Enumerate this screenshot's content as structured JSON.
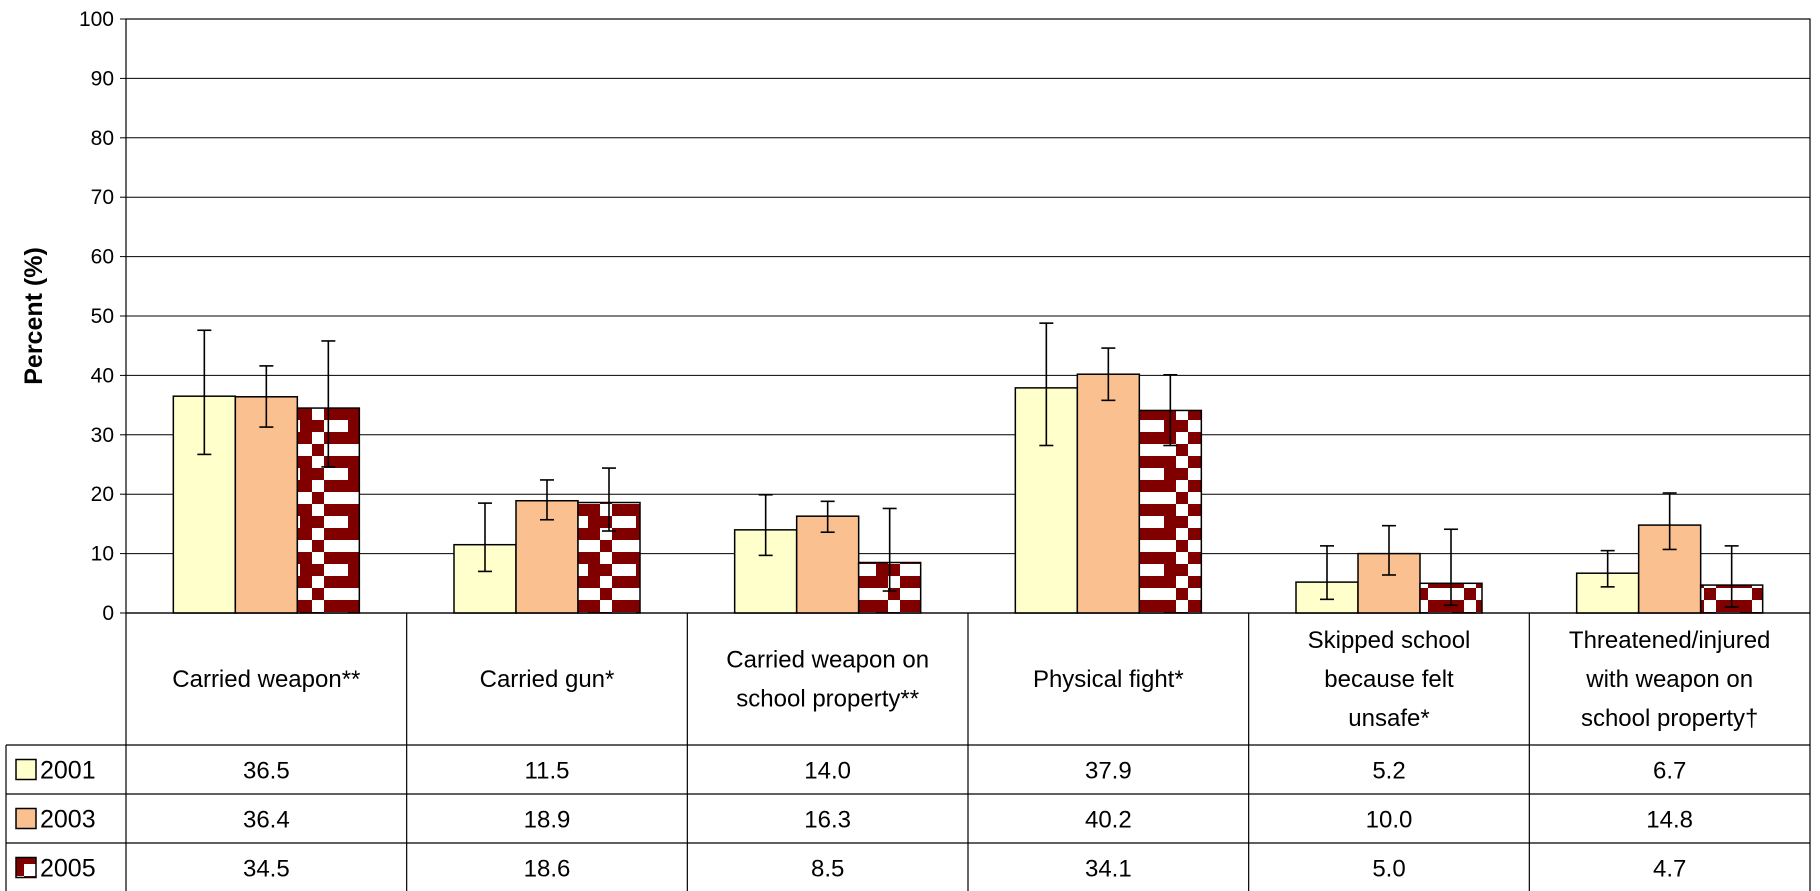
{
  "chart_data": {
    "type": "bar",
    "title": "",
    "ylabel": "Percent (%)",
    "ylim": [
      0,
      100
    ],
    "yticks": [
      0,
      10,
      20,
      30,
      40,
      50,
      60,
      70,
      80,
      90,
      100
    ],
    "grid": true,
    "legend_placement": "data-table-left",
    "categories": [
      [
        "Carried weapon**"
      ],
      [
        "Carried gun*"
      ],
      [
        "Carried weapon on",
        "school property**"
      ],
      [
        "Physical fight*"
      ],
      [
        "Skipped school",
        "because felt",
        "unsafe*"
      ],
      [
        "Threatened/injured",
        "with weapon on",
        "school property†"
      ]
    ],
    "series": [
      {
        "name": "2001",
        "fill": "#ffffcc",
        "pattern": "solid",
        "values": [
          36.5,
          11.5,
          14.0,
          37.9,
          5.2,
          6.7
        ],
        "labels": [
          "36.5",
          "11.5",
          "14.0",
          "37.9",
          "5.2",
          "6.7"
        ],
        "error_low": [
          26.7,
          7.0,
          9.7,
          28.2,
          2.3,
          4.4
        ],
        "error_high": [
          47.6,
          18.5,
          19.9,
          48.8,
          11.3,
          10.5
        ]
      },
      {
        "name": "2003",
        "fill": "#fac090",
        "pattern": "solid",
        "values": [
          36.4,
          18.9,
          16.3,
          40.2,
          10.0,
          14.8
        ],
        "labels": [
          "36.4",
          "18.9",
          "16.3",
          "40.2",
          "10.0",
          "14.8"
        ],
        "error_low": [
          31.3,
          15.7,
          13.6,
          35.8,
          6.4,
          10.7
        ],
        "error_high": [
          41.6,
          22.4,
          18.8,
          44.6,
          14.7,
          20.2
        ]
      },
      {
        "name": "2005",
        "fill": "#800000",
        "pattern": "diagonal-steps",
        "values": [
          34.5,
          18.6,
          8.5,
          34.1,
          5.0,
          4.7
        ],
        "labels": [
          "34.5",
          "18.6",
          "8.5",
          "34.1",
          "5.0",
          "4.7"
        ],
        "error_low": [
          24.6,
          13.8,
          3.7,
          28.2,
          1.3,
          1.0
        ],
        "error_high": [
          45.8,
          24.4,
          17.6,
          40.1,
          14.1,
          11.3
        ]
      }
    ]
  }
}
